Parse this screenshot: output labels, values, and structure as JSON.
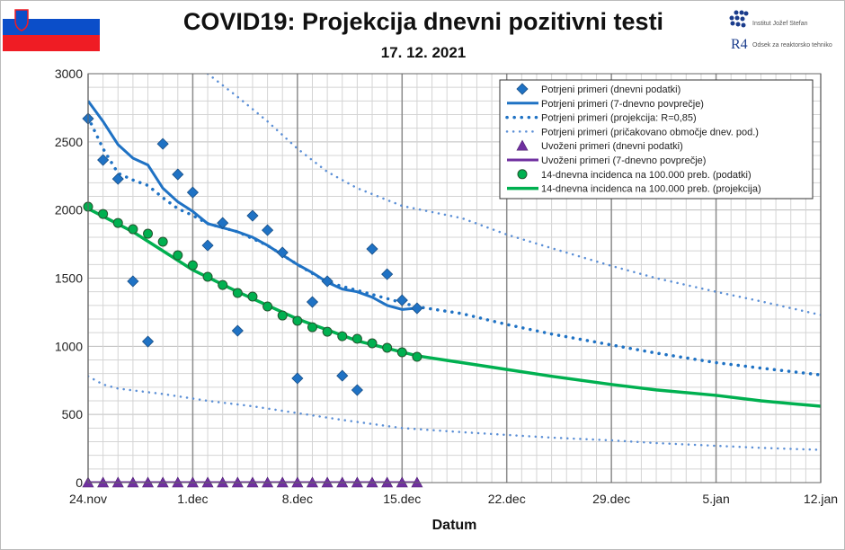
{
  "header": {
    "title": "COVID19: Projekcija dnevni pozitivni testi",
    "date": "17. 12. 2021",
    "logo": {
      "institute": "Institut Jožef Stefan",
      "department": "Odsek za reaktorsko tehniko",
      "mark": "R4"
    }
  },
  "colors": {
    "blue": "#1f72c4",
    "darkblue": "#2e75b6",
    "purple": "#7030a0",
    "green": "#00b050",
    "band": "#5b8fd6"
  },
  "chart_data": {
    "type": "line",
    "title": "COVID19: Projekcija dnevni pozitivni testi",
    "xlabel": "Datum",
    "ylabel": "",
    "ylim": [
      0,
      3000
    ],
    "yticks": [
      0,
      500,
      1000,
      1500,
      2000,
      2500,
      3000
    ],
    "xticks": [
      "24.nov",
      "1.dec",
      "8.dec",
      "15.dec",
      "22.dec",
      "29.dec",
      "5.jan",
      "12.jan"
    ],
    "x_unit": "days from 24.nov",
    "xlim": [
      0,
      49
    ],
    "grid": true,
    "legend_position": "top-right",
    "series": [
      {
        "name": "Potrjeni primeri (dnevni podatki)",
        "style": "diamond",
        "x": [
          0,
          1,
          2,
          3,
          4,
          5,
          6,
          7,
          8,
          9,
          10,
          11,
          12,
          13,
          14,
          15,
          16,
          17,
          18,
          19,
          20,
          21,
          22
        ],
        "y": [
          2670,
          2367,
          2228,
          1477,
          1035,
          2485,
          2261,
          2129,
          1740,
          1905,
          1114,
          1958,
          1852,
          1688,
          765,
          1325,
          1477,
          784,
          679,
          1714,
          1529,
          1338,
          1279
        ]
      },
      {
        "name": "Potrjeni primeri (7-dnevno povprečje)",
        "style": "solid",
        "x": [
          0,
          1,
          2,
          3,
          4,
          5,
          6,
          7,
          8,
          9,
          10,
          11,
          12,
          13,
          14,
          15,
          16,
          17,
          18,
          19,
          20,
          21,
          22
        ],
        "y": [
          2800,
          2650,
          2480,
          2380,
          2330,
          2160,
          2060,
          1990,
          1900,
          1870,
          1840,
          1800,
          1740,
          1670,
          1600,
          1540,
          1470,
          1420,
          1400,
          1360,
          1300,
          1270,
          1280
        ]
      },
      {
        "name": "Potrjeni primeri (projekcija: R=0,85)",
        "style": "dotted",
        "x": [
          0,
          1,
          2,
          3,
          4,
          5,
          6,
          7,
          8,
          9,
          10,
          12,
          14,
          16,
          18,
          20,
          22,
          25,
          28,
          31,
          35,
          38,
          42,
          45,
          49
        ],
        "y": [
          2680,
          2450,
          2270,
          2220,
          2180,
          2090,
          2010,
          1960,
          1900,
          1870,
          1840,
          1740,
          1600,
          1470,
          1410,
          1350,
          1290,
          1240,
          1160,
          1090,
          1010,
          950,
          880,
          840,
          790
        ]
      },
      {
        "name": "Potrjeni primeri (pričakovano območje dnev. pod.)",
        "style": "band-upper",
        "x": [
          8,
          10,
          12,
          14,
          16,
          18,
          21,
          25,
          28,
          31,
          35,
          38,
          42,
          45,
          49
        ],
        "y": [
          3000,
          2830,
          2650,
          2450,
          2280,
          2160,
          2030,
          1940,
          1820,
          1720,
          1590,
          1500,
          1400,
          1330,
          1230
        ]
      },
      {
        "name": "",
        "style": "band-lower",
        "x": [
          0,
          1,
          2,
          5,
          8,
          11,
          14,
          17,
          21,
          25,
          28,
          31,
          35,
          38,
          42,
          45,
          49
        ],
        "y": [
          780,
          720,
          690,
          650,
          600,
          560,
          510,
          460,
          400,
          370,
          350,
          330,
          310,
          290,
          270,
          255,
          240
        ]
      },
      {
        "name": "Uvoženi primeri (dnevni podatki)",
        "style": "triangle",
        "x": [
          0,
          1,
          2,
          3,
          4,
          5,
          6,
          7,
          8,
          9,
          10,
          11,
          12,
          13,
          14,
          15,
          16,
          17,
          18,
          19,
          20,
          21,
          22
        ],
        "y": [
          0,
          0,
          0,
          0,
          0,
          0,
          0,
          0,
          0,
          0,
          0,
          0,
          0,
          0,
          0,
          0,
          0,
          0,
          0,
          0,
          0,
          0,
          0
        ]
      },
      {
        "name": "Uvoženi primeri (7-dnevno povprečje)",
        "style": "solid-purple",
        "x": [
          0,
          22
        ],
        "y": [
          0,
          0
        ]
      },
      {
        "name": "14-dnevna incidenca na 100.000 preb. (podatki)",
        "style": "circle",
        "x": [
          0,
          1,
          2,
          3,
          4,
          5,
          6,
          7,
          8,
          9,
          10,
          11,
          12,
          13,
          14,
          15,
          16,
          17,
          18,
          19,
          20,
          21,
          22
        ],
        "y": [
          2024,
          1971,
          1905,
          1859,
          1826,
          1767,
          1668,
          1595,
          1510,
          1450,
          1391,
          1365,
          1292,
          1226,
          1187,
          1140,
          1107,
          1074,
          1055,
          1022,
          989,
          956,
          923
        ]
      },
      {
        "name": "14-dnevna incidenca na 100.000 preb. (projekcija)",
        "style": "solid-green",
        "x": [
          0,
          3,
          7,
          10,
          14,
          18,
          22,
          25,
          28,
          31,
          35,
          38,
          42,
          45,
          49
        ],
        "y": [
          2010,
          1840,
          1560,
          1400,
          1200,
          1040,
          930,
          880,
          830,
          780,
          720,
          680,
          640,
          600,
          560
        ]
      }
    ]
  }
}
